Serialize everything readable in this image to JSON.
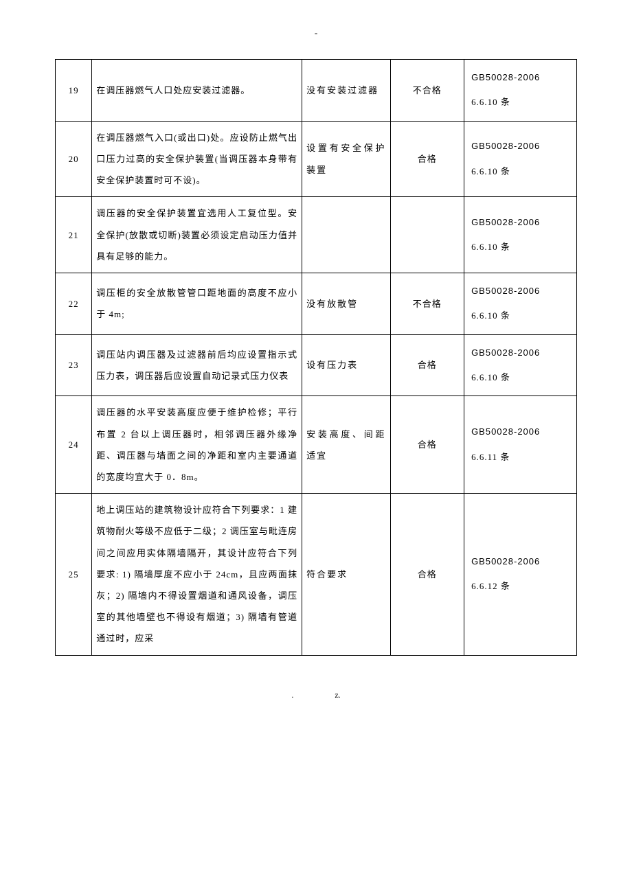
{
  "top_mark": "-",
  "footer_left": ".",
  "footer_right": "z.",
  "standard": "GB50028-2006",
  "rows": [
    {
      "num": "19",
      "desc": "在调压器燃气人口处应安装过滤器。",
      "status": "没有安装过滤器",
      "result": "不合格",
      "ref_clause": "6.6.10 条"
    },
    {
      "num": "20",
      "desc": "在调压器燃气入口(或出口)处。应设防止燃气出口压力过高的安全保护装置(当调压器本身带有安全保护装置时可不设)。",
      "status": "设置有安全保护装置",
      "result": "合格",
      "ref_clause": "6.6.10 条"
    },
    {
      "num": "21",
      "desc": "调压器的安全保护装置宜选用人工复位型。安全保护(放散或切断)装置必须设定启动压力值并具有足够的能力。",
      "status": "",
      "result": "",
      "ref_clause": "6.6.10 条"
    },
    {
      "num": "22",
      "desc": "调压柜的安全放散管管口距地面的高度不应小于 4m;",
      "status": "没有放散管",
      "result": "不合格",
      "ref_clause": "6.6.10 条"
    },
    {
      "num": "23",
      "desc": "调压站内调压器及过滤器前后均应设置指示式压力表，调压器后应设置自动记录式压力仪表",
      "status": "设有压力表",
      "result": "合格",
      "ref_clause": "6.6.10 条"
    },
    {
      "num": "24",
      "desc": "调压器的水平安装高度应便于维护检修；平行布置 2 台以上调压器时，相邻调压器外缘净距、调压器与墙面之间的净距和室内主要通道的宽度均宜大于 0．8m。",
      "status": "安装高度、间距适宜",
      "result": "合格",
      "ref_clause": "6.6.11 条"
    },
    {
      "num": "25",
      "desc": "地上调压站的建筑物设计应符合下列要求：1 建筑物耐火等级不应低于二级；2 调压室与毗连房间之间应用实体隔墙隔开，其设计应符合下列要求: 1) 隔墙厚度不应小于 24cm，且应两面抹灰；2) 隔墙内不得设置烟道和通风设备，调压室的其他墙壁也不得设有烟道；3) 隔墙有管道通过时，应采",
      "status": "符合要求",
      "result": "合格",
      "ref_clause": "6.6.12 条"
    }
  ]
}
